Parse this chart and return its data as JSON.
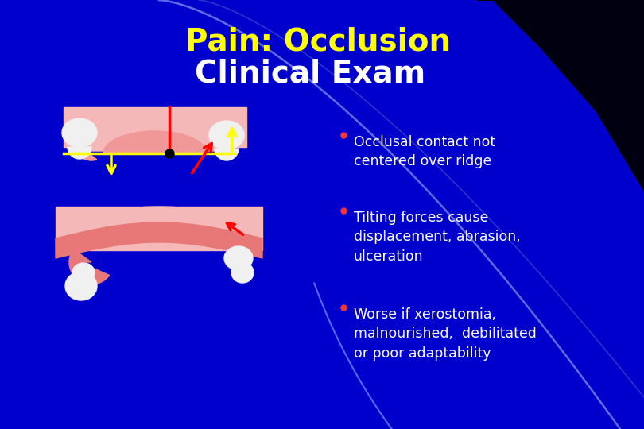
{
  "title_line1": "Pain: Occlusion",
  "title_line2": "Clinical Exam",
  "title_color": "#FFFF00",
  "subtitle_color": "#FFFFFF",
  "bullet_color": "#FF3333",
  "text_color": "#FFFFFF",
  "bg_blue": "#0000CC",
  "gum_light": "#F5B8B8",
  "gum_mid": "#F09898",
  "gum_dark": "#E87878",
  "tooth_white": "#F0F0F0",
  "bullets": [
    "Occlusal contact not\ncentered over ridge",
    "Tilting forces cause\ndisplacement, abrasion,\nulceration",
    "Worse if xerostomia,\nmalnourished,  debilitated\nor poor adaptability"
  ],
  "figsize": [
    8.1,
    5.4
  ],
  "dpi": 100
}
